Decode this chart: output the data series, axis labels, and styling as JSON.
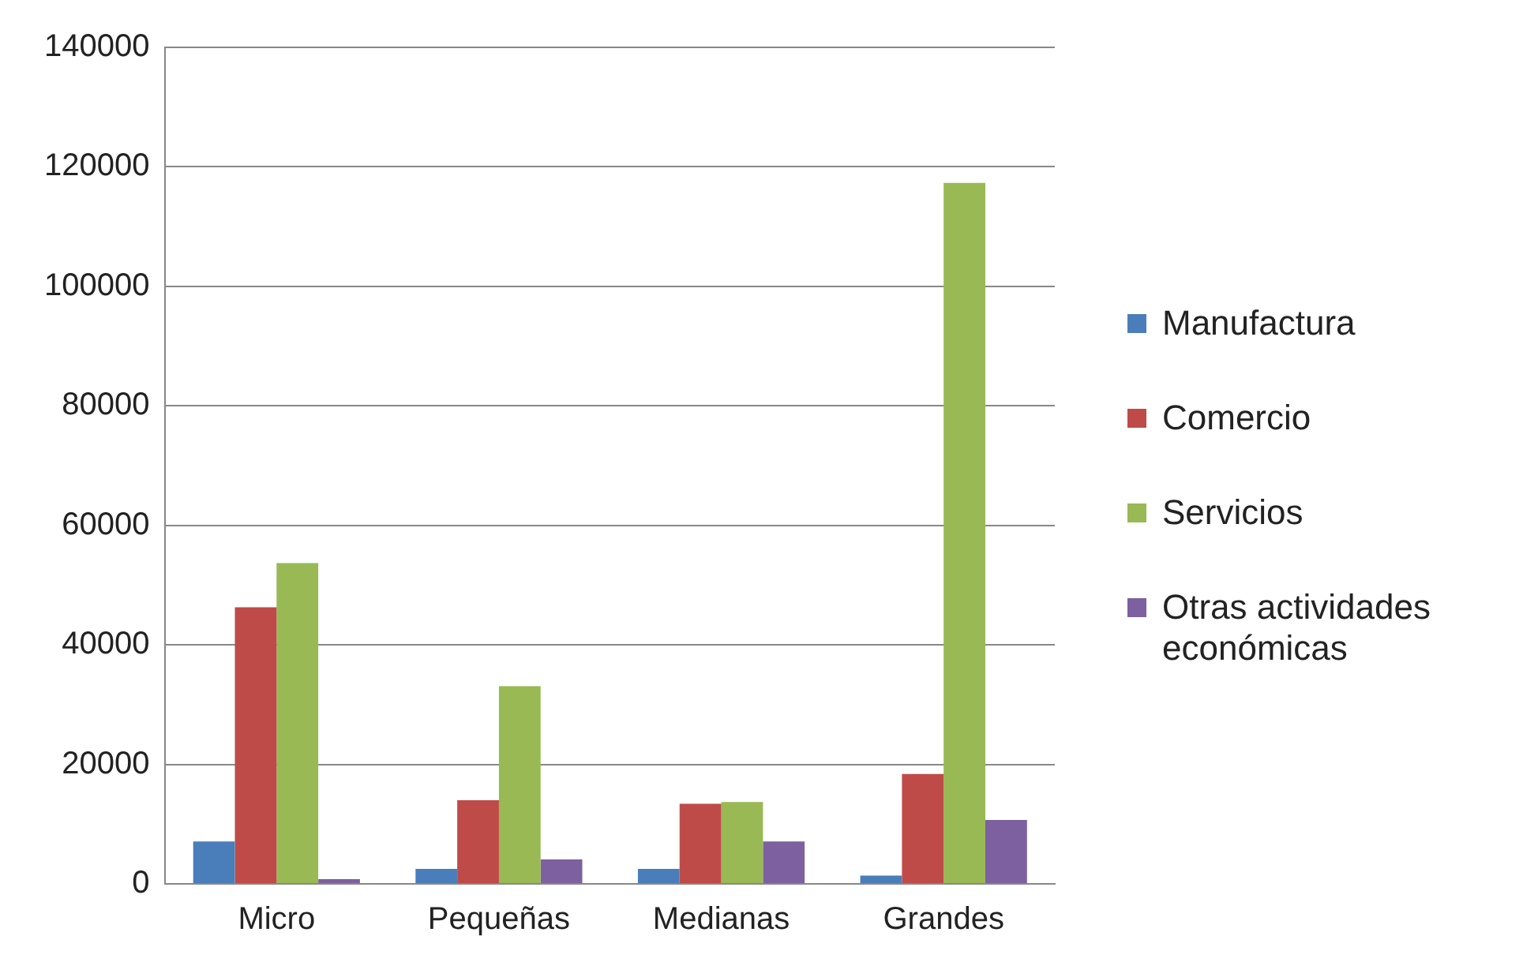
{
  "chart_data": {
    "type": "bar",
    "categories": [
      "Micro",
      "Pequeñas",
      "Medianas",
      "Grandes"
    ],
    "series": [
      {
        "name": "Manufactura",
        "color": "#4a7ebb",
        "values": [
          7100,
          2500,
          2500,
          1400
        ]
      },
      {
        "name": "Comercio",
        "color": "#be4b48",
        "values": [
          46300,
          14000,
          13400,
          18400
        ]
      },
      {
        "name": "Servicios",
        "color": "#98b954",
        "values": [
          53700,
          33100,
          13700,
          117300
        ]
      },
      {
        "name": "Otras actividades económicas",
        "color": "#7d60a0",
        "values": [
          800,
          4100,
          7100,
          10700
        ]
      }
    ],
    "ylim": [
      0,
      140000
    ],
    "yticks": [
      0,
      20000,
      40000,
      60000,
      80000,
      100000,
      120000,
      140000
    ],
    "grid": "y",
    "legend": "right"
  }
}
